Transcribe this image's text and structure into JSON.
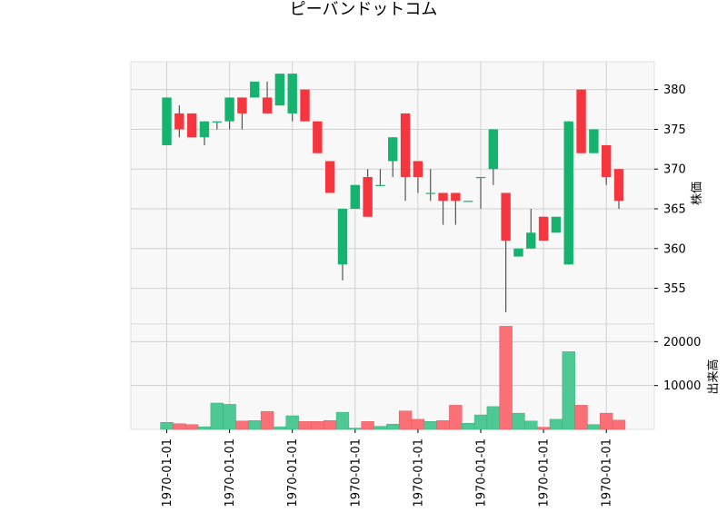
{
  "chart_data": {
    "type": "candlestick",
    "title": "ピーバンドットコム",
    "price_axis_label": "株価",
    "volume_axis_label": "出来高",
    "price_ylim": [
      350.5,
      383.5
    ],
    "price_ticks": [
      "355",
      "360",
      "365",
      "370",
      "375",
      "380"
    ],
    "volume_ylim": [
      0,
      24000
    ],
    "volume_ticks": [
      "10000",
      "20000"
    ],
    "x_tick_labels": [
      "1970-01-01",
      "1970-01-01",
      "1970-01-01",
      "1970-01-01",
      "1970-01-01",
      "1970-01-01",
      "1970-01-01",
      "1970-01-01"
    ],
    "x_tick_indices": [
      0,
      5,
      10,
      15,
      20,
      25,
      30,
      35
    ],
    "grid": true,
    "colors": {
      "up": "#16b36e",
      "down": "#f5363f",
      "up_vol": "#4fc994",
      "down_vol": "#fb7076",
      "wick": "#555555",
      "panel_bg": "#f8f8f8",
      "grid": "#d0d0d0"
    },
    "candles": [
      {
        "o": 373,
        "h": 379,
        "l": 373,
        "c": 379,
        "v": 1600
      },
      {
        "o": 377,
        "h": 378,
        "l": 374,
        "c": 375,
        "v": 1300
      },
      {
        "o": 377,
        "h": 377,
        "l": 374,
        "c": 374,
        "v": 1100
      },
      {
        "o": 374,
        "h": 376,
        "l": 373,
        "c": 376,
        "v": 600
      },
      {
        "o": 376,
        "h": 376,
        "l": 375,
        "c": 376,
        "v": 6000
      },
      {
        "o": 376,
        "h": 379,
        "l": 375,
        "c": 379,
        "v": 5700
      },
      {
        "o": 379,
        "h": 379,
        "l": 375,
        "c": 377,
        "v": 1900
      },
      {
        "o": 379,
        "h": 381,
        "l": 379,
        "c": 381,
        "v": 2000
      },
      {
        "o": 379,
        "h": 381,
        "l": 377,
        "c": 377,
        "v": 4100
      },
      {
        "o": 378,
        "h": 382,
        "l": 378,
        "c": 382,
        "v": 600
      },
      {
        "o": 377,
        "h": 382,
        "l": 376,
        "c": 382,
        "v": 3100
      },
      {
        "o": 380,
        "h": 380,
        "l": 376,
        "c": 376,
        "v": 1800
      },
      {
        "o": 376,
        "h": 376,
        "l": 372,
        "c": 372,
        "v": 1800
      },
      {
        "o": 371,
        "h": 371,
        "l": 367,
        "c": 367,
        "v": 2000
      },
      {
        "o": 358,
        "h": 365,
        "l": 356,
        "c": 365,
        "v": 3900
      },
      {
        "o": 365,
        "h": 368,
        "l": 365,
        "c": 368,
        "v": 300
      },
      {
        "o": 369,
        "h": 370,
        "l": 364,
        "c": 364,
        "v": 1800
      },
      {
        "o": 368,
        "h": 370,
        "l": 368,
        "c": 368,
        "v": 700
      },
      {
        "o": 371,
        "h": 374,
        "l": 369,
        "c": 374,
        "v": 1200
      },
      {
        "o": 377,
        "h": 377,
        "l": 366,
        "c": 369,
        "v": 4200
      },
      {
        "o": 371,
        "h": 371,
        "l": 367,
        "c": 369,
        "v": 2300
      },
      {
        "o": 367,
        "h": 370,
        "l": 366,
        "c": 367,
        "v": 1800
      },
      {
        "o": 367,
        "h": 367,
        "l": 363,
        "c": 366,
        "v": 2000
      },
      {
        "o": 367,
        "h": 367,
        "l": 363,
        "c": 366,
        "v": 5500
      },
      {
        "o": 366,
        "h": 366,
        "l": 366,
        "c": 366,
        "v": 1400
      },
      {
        "o": 369,
        "h": 369,
        "l": 365,
        "c": 369,
        "v": 3300
      },
      {
        "o": 370,
        "h": 375,
        "l": 368,
        "c": 375,
        "v": 5200
      },
      {
        "o": 367,
        "h": 367,
        "l": 352,
        "c": 361,
        "v": 23500
      },
      {
        "o": 359,
        "h": 360,
        "l": 359,
        "c": 360,
        "v": 3700
      },
      {
        "o": 360,
        "h": 365,
        "l": 360,
        "c": 362,
        "v": 1900
      },
      {
        "o": 364,
        "h": 364,
        "l": 361,
        "c": 361,
        "v": 500
      },
      {
        "o": 362,
        "h": 364,
        "l": 362,
        "c": 364,
        "v": 2300
      },
      {
        "o": 358,
        "h": 376,
        "l": 358,
        "c": 376,
        "v": 17700
      },
      {
        "o": 380,
        "h": 380,
        "l": 372,
        "c": 372,
        "v": 5500
      },
      {
        "o": 372,
        "h": 375,
        "l": 372,
        "c": 375,
        "v": 1100
      },
      {
        "o": 373,
        "h": 373,
        "l": 368,
        "c": 369,
        "v": 3700
      },
      {
        "o": 370,
        "h": 370,
        "l": 365,
        "c": 366,
        "v": 2100
      }
    ]
  }
}
